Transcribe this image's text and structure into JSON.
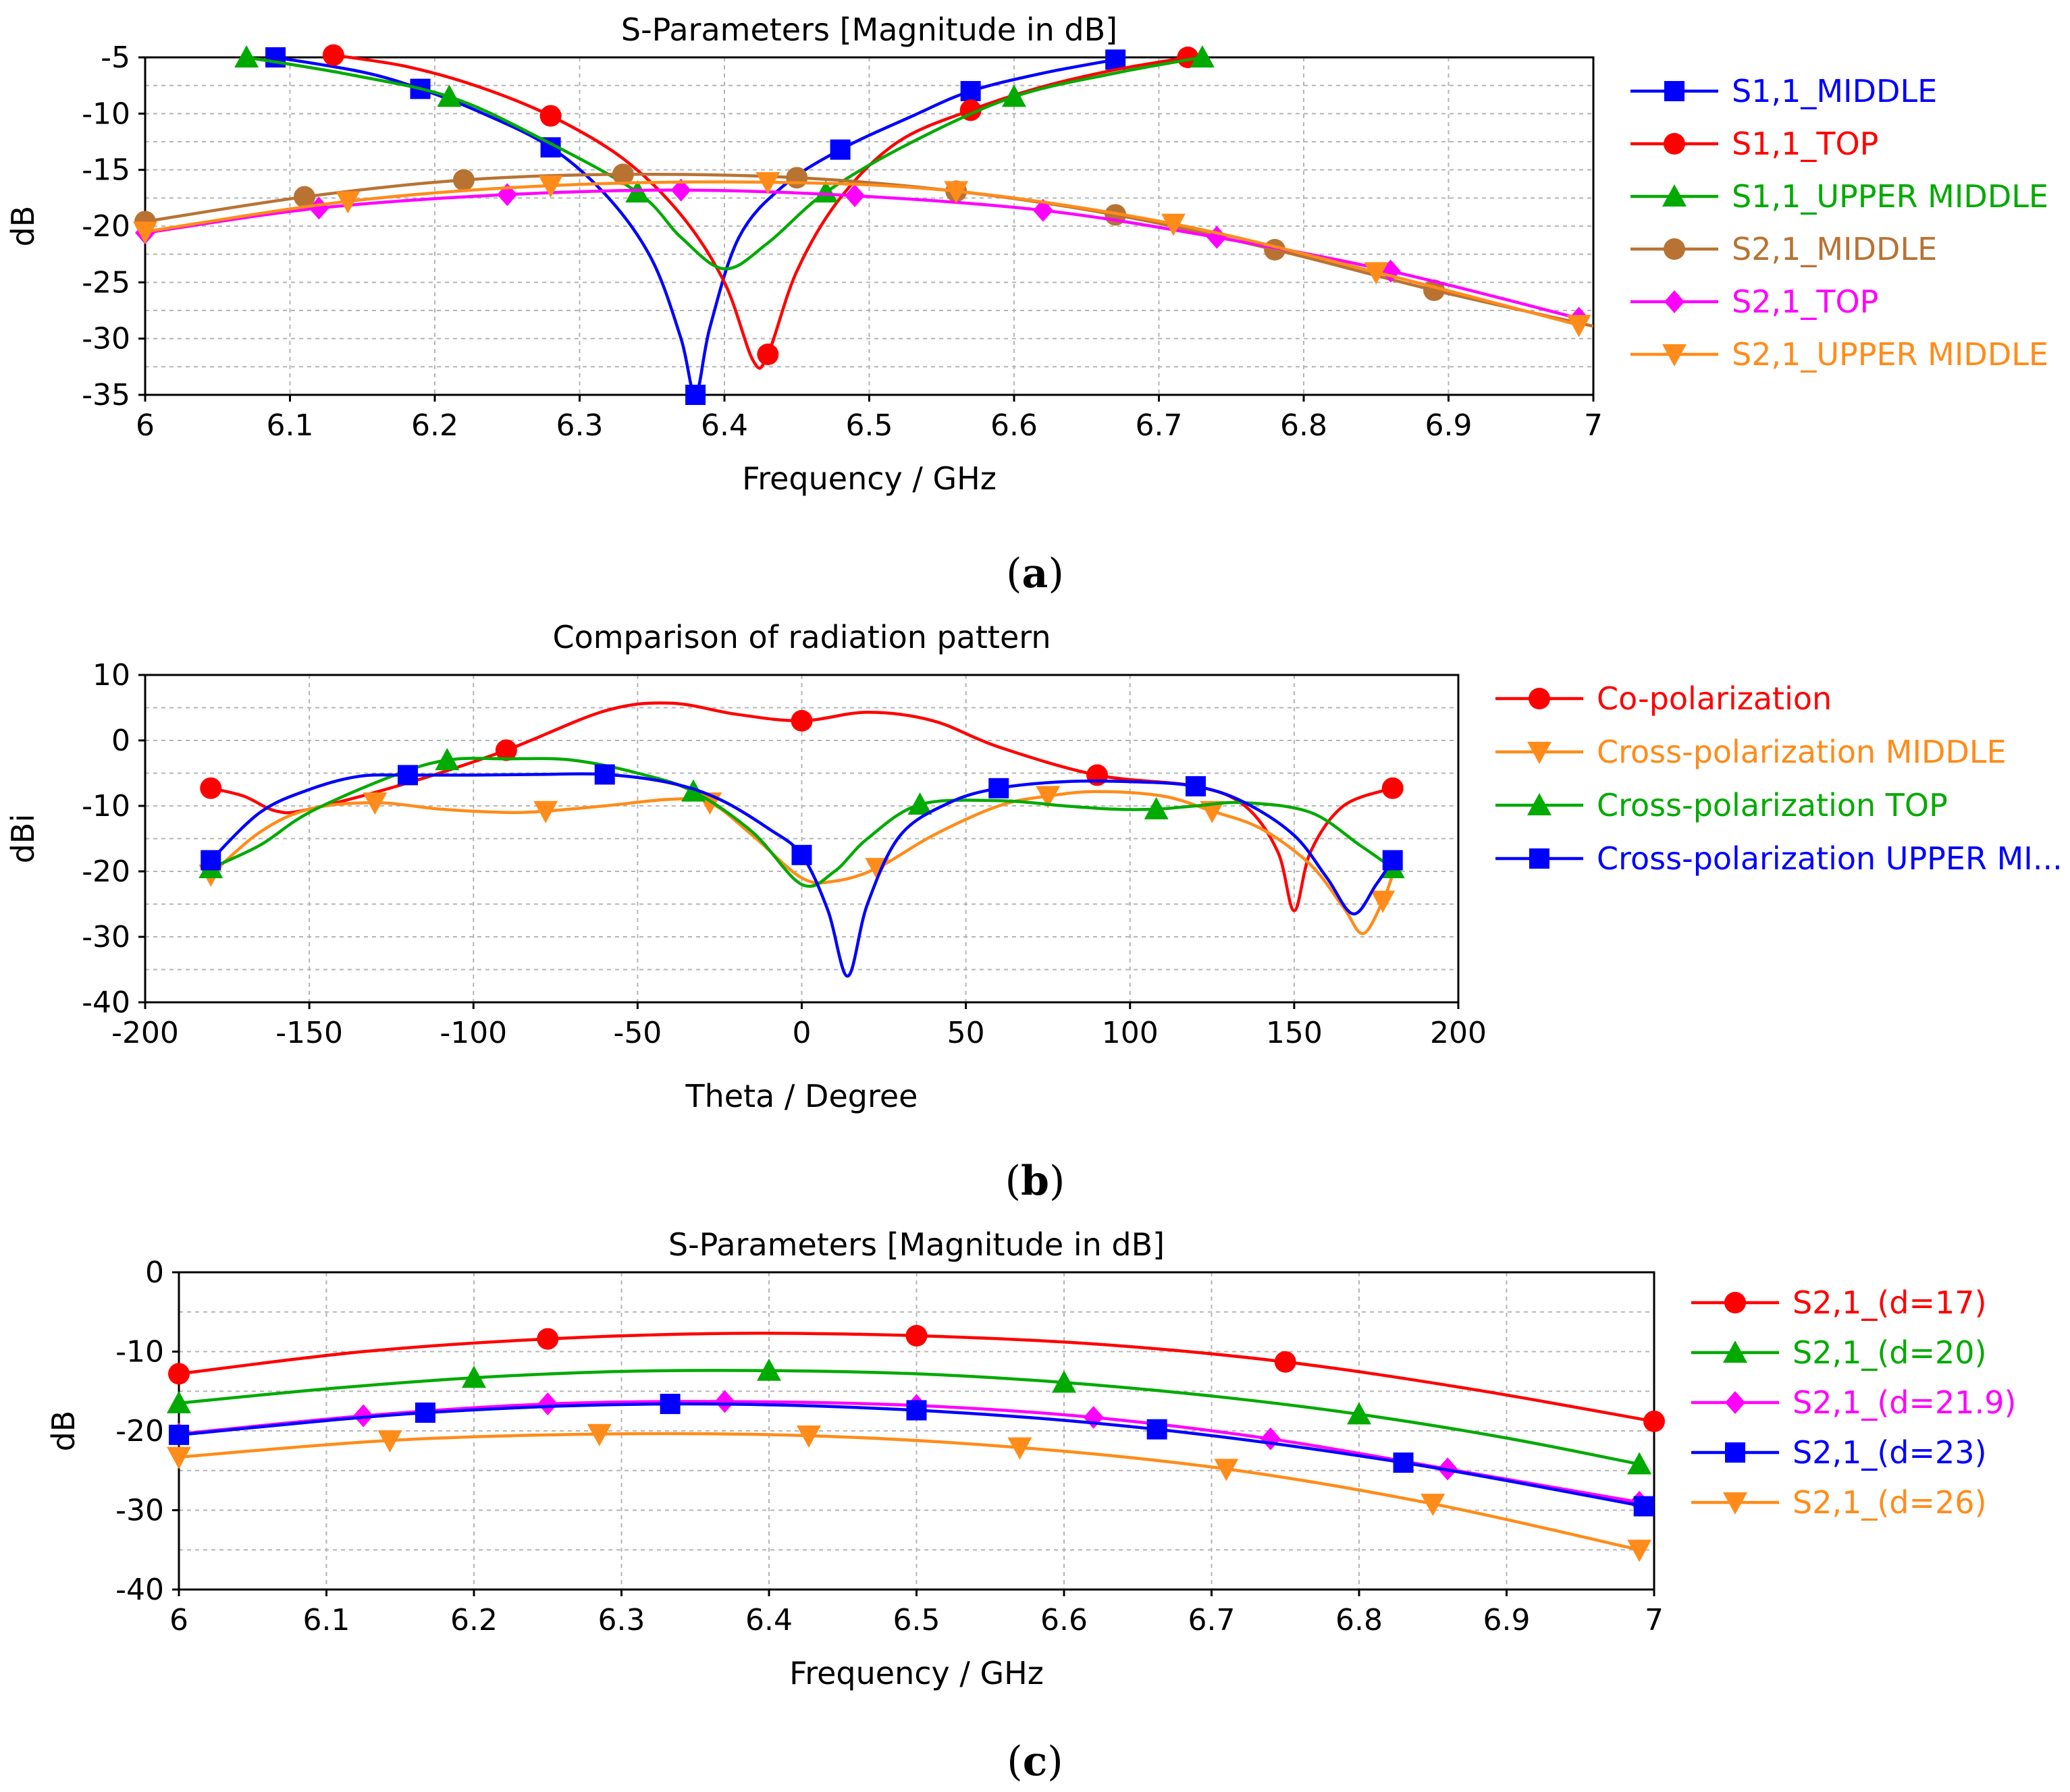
{
  "chart_data": [
    {
      "type": "line",
      "caption": "a",
      "title": "S-Parameters [Magnitude in dB]",
      "xlabel": "Frequency / GHz",
      "ylabel": "dB",
      "xlim": [
        6,
        7
      ],
      "ylim": [
        -35,
        -5
      ],
      "xticks": [
        6,
        6.1,
        6.2,
        6.3,
        6.4,
        6.5,
        6.6,
        6.7,
        6.8,
        6.9,
        7
      ],
      "yticks": [
        -5,
        -10,
        -15,
        -20,
        -25,
        -30,
        -35
      ],
      "legend_position": "right",
      "series": [
        {
          "name": "S1,1_MIDDLE",
          "color": "#0000ff",
          "marker": "square",
          "x": [
            6.09,
            6.15,
            6.19,
            6.23,
            6.28,
            6.32,
            6.35,
            6.37,
            6.38,
            6.39,
            6.41,
            6.44,
            6.48,
            6.53,
            6.57,
            6.62,
            6.67
          ],
          "y": [
            -5.0,
            -6.3,
            -7.8,
            -9.8,
            -13.0,
            -17.5,
            -23.0,
            -30.0,
            -35.0,
            -29.0,
            -21.0,
            -16.5,
            -13.2,
            -10.2,
            -8.0,
            -6.4,
            -5.2
          ],
          "markers_x": [
            6.09,
            6.19,
            6.28,
            6.38,
            6.48,
            6.57,
            6.67
          ],
          "markers_y": [
            -5.0,
            -7.8,
            -13.0,
            -35.0,
            -13.2,
            -8.0,
            -5.2
          ]
        },
        {
          "name": "S1,1_TOP",
          "color": "#ff0000",
          "marker": "circle",
          "x": [
            6.13,
            6.18,
            6.23,
            6.28,
            6.33,
            6.37,
            6.4,
            6.42,
            6.43,
            6.45,
            6.48,
            6.52,
            6.57,
            6.62,
            6.67,
            6.72
          ],
          "y": [
            -4.8,
            -5.8,
            -7.6,
            -10.2,
            -14.0,
            -19.0,
            -25.0,
            -32.0,
            -31.4,
            -24.0,
            -17.5,
            -12.5,
            -9.7,
            -7.6,
            -6.1,
            -5.0
          ],
          "markers_x": [
            6.13,
            6.28,
            6.43,
            6.57,
            6.72
          ],
          "markers_y": [
            -4.8,
            -10.2,
            -31.4,
            -9.7,
            -5.0
          ]
        },
        {
          "name": "S1,1_UPPER MIDDLE",
          "color": "#00aa00",
          "marker": "triangle-up",
          "x": [
            6.07,
            6.14,
            6.21,
            6.27,
            6.34,
            6.37,
            6.4,
            6.43,
            6.47,
            6.53,
            6.6,
            6.67,
            6.73
          ],
          "y": [
            -5.0,
            -6.5,
            -8.5,
            -12.0,
            -17.0,
            -21.0,
            -23.8,
            -21.5,
            -17.0,
            -12.5,
            -8.5,
            -6.4,
            -5.0
          ],
          "markers_x": [
            6.07,
            6.21,
            6.34,
            6.47,
            6.6,
            6.73
          ],
          "markers_y": [
            -5.0,
            -8.5,
            -17.0,
            -17.0,
            -8.5,
            -5.0
          ]
        },
        {
          "name": "S2,1_MIDDLE",
          "color": "#b87333",
          "marker": "circle",
          "x": [
            6.0,
            6.11,
            6.22,
            6.33,
            6.45,
            6.56,
            6.67,
            6.78,
            6.89,
            7.0
          ],
          "y": [
            -19.6,
            -17.4,
            -15.9,
            -15.4,
            -15.7,
            -16.9,
            -19.0,
            -22.1,
            -25.7,
            -28.9
          ],
          "markers_x": [
            6.0,
            6.11,
            6.22,
            6.33,
            6.45,
            6.56,
            6.67,
            6.78,
            6.89
          ],
          "markers_y": [
            -19.6,
            -17.4,
            -15.9,
            -15.4,
            -15.7,
            -16.9,
            -19.0,
            -22.1,
            -25.7
          ]
        },
        {
          "name": "S2,1_TOP",
          "color": "#ff00ff",
          "marker": "diamond",
          "x": [
            6.0,
            6.12,
            6.25,
            6.37,
            6.49,
            6.62,
            6.74,
            6.86,
            6.99
          ],
          "y": [
            -20.6,
            -18.4,
            -17.2,
            -16.8,
            -17.3,
            -18.6,
            -21.0,
            -24.0,
            -28.2
          ],
          "markers_x": [
            6.0,
            6.12,
            6.25,
            6.37,
            6.49,
            6.62,
            6.74,
            6.86,
            6.99
          ],
          "markers_y": [
            -20.6,
            -18.4,
            -17.2,
            -16.8,
            -17.3,
            -18.6,
            -21.0,
            -24.0,
            -28.2
          ]
        },
        {
          "name": "S2,1_UPPER MIDDLE",
          "color": "#ff8c1a",
          "marker": "triangle-down",
          "x": [
            6.0,
            6.14,
            6.28,
            6.43,
            6.56,
            6.71,
            6.85,
            6.99
          ],
          "y": [
            -20.5,
            -17.8,
            -16.4,
            -16.1,
            -16.9,
            -19.8,
            -24.1,
            -28.8
          ],
          "markers_x": [
            6.0,
            6.14,
            6.28,
            6.43,
            6.56,
            6.71,
            6.85,
            6.99
          ],
          "markers_y": [
            -20.5,
            -17.8,
            -16.4,
            -16.1,
            -16.9,
            -19.8,
            -24.1,
            -28.8
          ]
        }
      ]
    },
    {
      "type": "line",
      "caption": "b",
      "title": "Comparison of radiation pattern",
      "xlabel": "Theta / Degree",
      "ylabel": "dBi",
      "xlim": [
        -200,
        200
      ],
      "ylim": [
        -40,
        10
      ],
      "xticks": [
        -200,
        -150,
        -100,
        -50,
        0,
        50,
        100,
        150,
        200
      ],
      "yticks": [
        10,
        0,
        -10,
        -20,
        -30,
        -40
      ],
      "legend_position": "right",
      "series": [
        {
          "name": "Co-polarization",
          "color": "#ff0000",
          "marker": "circle",
          "x": [
            -180,
            -170,
            -160,
            -150,
            -120,
            -90,
            -60,
            -40,
            -20,
            0,
            20,
            40,
            60,
            90,
            120,
            135,
            145,
            150,
            155,
            165,
            180
          ],
          "y": [
            -7.3,
            -8.5,
            -10.8,
            -10.5,
            -6.5,
            -1.5,
            4.5,
            5.7,
            4.0,
            3.0,
            4.3,
            3.0,
            -1.0,
            -5.3,
            -7.0,
            -10.0,
            -17.0,
            -26.0,
            -17.0,
            -10.0,
            -7.3
          ],
          "markers_x": [
            -180,
            -90,
            0,
            90,
            180
          ],
          "markers_y": [
            -7.3,
            -1.5,
            3.0,
            -5.3,
            -7.3
          ]
        },
        {
          "name": "Cross-polarization MIDDLE",
          "color": "#ff8c1a",
          "marker": "triangle-down",
          "x": [
            -180,
            -165,
            -150,
            -130,
            -110,
            -90,
            -78,
            -60,
            -40,
            -28,
            -15,
            0,
            10,
            23,
            40,
            60,
            75,
            90,
            110,
            125,
            140,
            155,
            165,
            171,
            177,
            180
          ],
          "y": [
            -20.5,
            -14.0,
            -10.5,
            -9.5,
            -10.5,
            -11.0,
            -10.8,
            -10.0,
            -9.0,
            -9.5,
            -14.5,
            -21.0,
            -21.5,
            -19.5,
            -14.5,
            -10.0,
            -8.5,
            -7.8,
            -8.5,
            -10.8,
            -13.5,
            -19.0,
            -25.5,
            -29.5,
            -24.5,
            -20.5
          ],
          "markers_x": [
            -180,
            -130,
            -78,
            -28,
            23,
            75,
            125,
            177
          ],
          "markers_y": [
            -20.5,
            -9.5,
            -10.8,
            -9.5,
            -19.5,
            -8.5,
            -10.8,
            -24.5
          ]
        },
        {
          "name": "Cross-polarization TOP",
          "color": "#00aa00",
          "marker": "triangle-up",
          "x": [
            -180,
            -165,
            -150,
            -125,
            -108,
            -90,
            -70,
            -50,
            -33,
            -15,
            0,
            10,
            20,
            36,
            60,
            80,
            95,
            108,
            120,
            135,
            155,
            170,
            180
          ],
          "y": [
            -19.5,
            -16.0,
            -11.0,
            -5.5,
            -3.0,
            -2.8,
            -3.0,
            -5.0,
            -7.8,
            -14.0,
            -22.0,
            -20.0,
            -15.0,
            -9.8,
            -9.2,
            -10.0,
            -10.5,
            -10.5,
            -10.0,
            -9.5,
            -11.0,
            -16.0,
            -19.5
          ],
          "markers_x": [
            -180,
            -108,
            -33,
            36,
            108,
            180
          ],
          "markers_y": [
            -19.5,
            -3.0,
            -7.8,
            -9.8,
            -10.5,
            -19.5
          ]
        },
        {
          "name": "Cross-polarization UPPER MI...",
          "color": "#0000ff",
          "marker": "square",
          "x": [
            -180,
            -165,
            -150,
            -135,
            -120,
            -100,
            -80,
            -60,
            -40,
            -25,
            -10,
            0,
            8,
            14,
            20,
            30,
            45,
            60,
            80,
            100,
            120,
            135,
            150,
            160,
            168,
            175,
            180
          ],
          "y": [
            -18.3,
            -11.0,
            -7.5,
            -5.5,
            -5.3,
            -5.3,
            -5.2,
            -5.2,
            -6.5,
            -9.0,
            -13.5,
            -17.5,
            -26.0,
            -36.0,
            -25.0,
            -14.5,
            -9.5,
            -7.3,
            -6.3,
            -6.3,
            -7.0,
            -9.5,
            -14.5,
            -21.0,
            -26.5,
            -22.0,
            -18.3
          ],
          "markers_x": [
            -180,
            -120,
            -60,
            0,
            60,
            120,
            180
          ],
          "markers_y": [
            -18.3,
            -5.3,
            -5.2,
            -17.5,
            -7.3,
            -7.0,
            -18.3
          ]
        }
      ]
    },
    {
      "type": "line",
      "caption": "c",
      "title": "S-Parameters [Magnitude in dB]",
      "xlabel": "Frequency / GHz",
      "ylabel": "dB",
      "xlim": [
        6,
        7
      ],
      "ylim": [
        -40,
        0
      ],
      "xticks": [
        6,
        6.1,
        6.2,
        6.3,
        6.4,
        6.5,
        6.6,
        6.7,
        6.8,
        6.9,
        7
      ],
      "yticks": [
        0,
        -10,
        -20,
        -30,
        -40
      ],
      "legend_position": "right",
      "series": [
        {
          "name": "S2,1_(d=17)",
          "color": "#ff0000",
          "marker": "circle",
          "x": [
            6.0,
            6.125,
            6.25,
            6.375,
            6.5,
            6.625,
            6.75,
            6.875,
            7.0
          ],
          "y": [
            -12.8,
            -10.0,
            -8.4,
            -7.7,
            -8.0,
            -9.1,
            -11.3,
            -14.7,
            -18.8
          ],
          "markers_x": [
            6.0,
            6.25,
            6.5,
            6.75,
            7.0
          ],
          "markers_y": [
            -12.8,
            -8.4,
            -8.0,
            -11.3,
            -18.8
          ]
        },
        {
          "name": "S2,1_(d=20)",
          "color": "#00aa00",
          "marker": "triangle-up",
          "x": [
            6.0,
            6.1,
            6.2,
            6.3,
            6.4,
            6.5,
            6.6,
            6.7,
            6.8,
            6.9,
            6.99
          ],
          "y": [
            -16.5,
            -14.7,
            -13.3,
            -12.5,
            -12.4,
            -12.8,
            -13.9,
            -15.6,
            -17.9,
            -20.9,
            -24.2
          ],
          "markers_x": [
            6.0,
            6.2,
            6.4,
            6.6,
            6.8,
            6.99
          ],
          "markers_y": [
            -16.5,
            -13.3,
            -12.4,
            -13.9,
            -17.9,
            -24.2
          ]
        },
        {
          "name": "S2,1_(d=21.9)",
          "color": "#ff00ff",
          "marker": "diamond",
          "x": [
            6.0,
            6.125,
            6.25,
            6.37,
            6.5,
            6.62,
            6.74,
            6.86,
            6.99
          ],
          "y": [
            -20.4,
            -18.1,
            -16.6,
            -16.3,
            -16.8,
            -18.3,
            -21.0,
            -24.8,
            -29.0
          ],
          "markers_x": [
            6.0,
            6.125,
            6.25,
            6.37,
            6.5,
            6.62,
            6.74,
            6.86,
            6.99
          ],
          "markers_y": [
            -20.4,
            -18.1,
            -16.6,
            -16.3,
            -16.8,
            -18.3,
            -21.0,
            -24.8,
            -29.0
          ]
        },
        {
          "name": "S2,1_(d=23)",
          "color": "#0000ff",
          "marker": "square",
          "x": [
            6.0,
            6.167,
            6.333,
            6.5,
            6.663,
            6.83,
            6.993
          ],
          "y": [
            -20.5,
            -17.7,
            -16.6,
            -17.4,
            -19.8,
            -24.0,
            -29.5
          ],
          "markers_x": [
            6.0,
            6.167,
            6.333,
            6.5,
            6.663,
            6.83,
            6.993
          ],
          "markers_y": [
            -20.5,
            -17.7,
            -16.6,
            -17.4,
            -19.8,
            -24.0,
            -29.5
          ]
        },
        {
          "name": "S2,1_(d=26)",
          "color": "#ff8c1a",
          "marker": "triangle-down",
          "x": [
            6.0,
            6.143,
            6.285,
            6.427,
            6.57,
            6.71,
            6.85,
            6.99
          ],
          "y": [
            -23.3,
            -21.2,
            -20.4,
            -20.6,
            -22.1,
            -24.8,
            -29.2,
            -35.0
          ],
          "markers_x": [
            6.0,
            6.143,
            6.285,
            6.427,
            6.57,
            6.71,
            6.85,
            6.99
          ],
          "markers_y": [
            -23.3,
            -21.2,
            -20.4,
            -20.6,
            -22.1,
            -24.8,
            -29.2,
            -35.0
          ]
        }
      ]
    }
  ]
}
